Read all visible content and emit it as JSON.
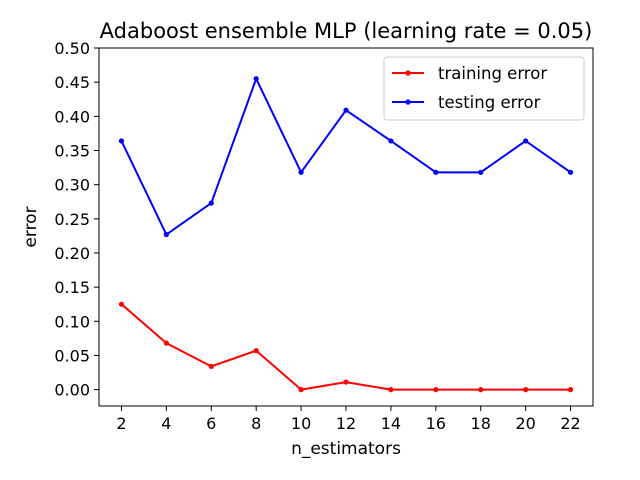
{
  "chart_data": {
    "type": "line",
    "title": "Adaboost ensemble MLP (learning rate = 0.05)",
    "xlabel": "n_estimators",
    "ylabel": "error",
    "x": [
      2,
      4,
      6,
      8,
      10,
      12,
      14,
      16,
      18,
      20,
      22
    ],
    "xticks": [
      "2",
      "4",
      "6",
      "8",
      "10",
      "12",
      "14",
      "16",
      "18",
      "20",
      "22"
    ],
    "yticks": [
      "0.00",
      "0.05",
      "0.10",
      "0.15",
      "0.20",
      "0.25",
      "0.30",
      "0.35",
      "0.40",
      "0.45",
      "0.50"
    ],
    "ylim": [
      -0.024,
      0.5
    ],
    "xlim": [
      1,
      23
    ],
    "grid": false,
    "legend_position": "top-right",
    "series": [
      {
        "name": "training error",
        "color": "#ff0000",
        "marker": "dot",
        "values": [
          0.125,
          0.068,
          0.034,
          0.057,
          0.0,
          0.011,
          0.0,
          0.0,
          0.0,
          0.0,
          0.0
        ]
      },
      {
        "name": "testing error",
        "color": "#0000ff",
        "marker": "dot",
        "values": [
          0.364,
          0.227,
          0.273,
          0.455,
          0.318,
          0.409,
          0.364,
          0.318,
          0.318,
          0.364,
          0.318
        ]
      }
    ]
  }
}
